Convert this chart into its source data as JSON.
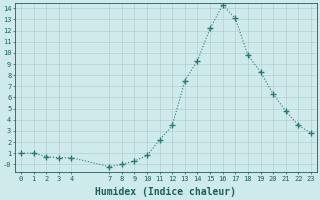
{
  "x": [
    0,
    1,
    2,
    3,
    4,
    7,
    8,
    9,
    10,
    11,
    12,
    13,
    14,
    15,
    16,
    17,
    18,
    19,
    20,
    21,
    22,
    23
  ],
  "y": [
    1.0,
    1.0,
    0.7,
    0.6,
    0.6,
    -0.2,
    0.0,
    0.3,
    0.8,
    2.2,
    3.5,
    7.5,
    9.3,
    12.2,
    14.3,
    13.1,
    9.8,
    8.3,
    6.3,
    4.8,
    3.5,
    2.8
  ],
  "line_color": "#2a7a6e",
  "marker": "+",
  "marker_size": 4,
  "marker_linewidth": 1.0,
  "bg_color": "#ceeaea",
  "grid_color": "#aec8c8",
  "tick_color": "#1a5f5a",
  "xlabel": "Humidex (Indice chaleur)",
  "xlabel_fontsize": 7,
  "tick_fontsize": 5,
  "xtick_labels": [
    "0",
    "1",
    "2",
    "3",
    "4",
    "7",
    "8",
    "9",
    "10",
    "11",
    "12",
    "13",
    "14",
    "15",
    "16",
    "17",
    "18",
    "19",
    "20",
    "21",
    "22",
    "23"
  ],
  "ylim": [
    -0.7,
    14.5
  ],
  "xlim": [
    -0.5,
    23.5
  ]
}
